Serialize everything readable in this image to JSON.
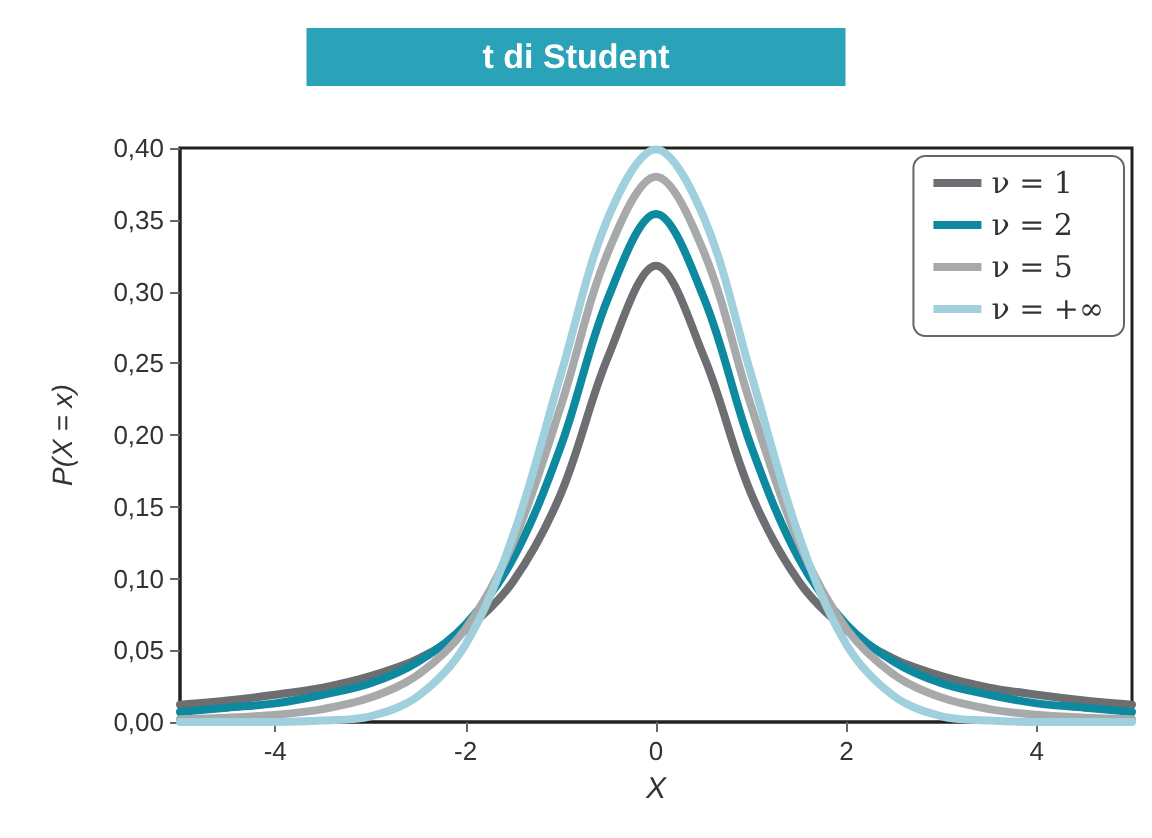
{
  "chart_data": {
    "type": "line",
    "title": "t di Student",
    "xlabel": "X",
    "ylabel": "P(X = x)",
    "x": [
      -5,
      -4.5,
      -4,
      -3.5,
      -3,
      -2.5,
      -2,
      -1.5,
      -1,
      -0.5,
      0,
      0.5,
      1,
      1.5,
      2,
      2.5,
      3,
      3.5,
      4,
      4.5,
      5
    ],
    "series": [
      {
        "name": "ν = 1",
        "color": "#6d6e71",
        "values": [
          0.012,
          0.015,
          0.019,
          0.024,
          0.032,
          0.044,
          0.064,
          0.098,
          0.159,
          0.255,
          0.318,
          0.255,
          0.159,
          0.098,
          0.064,
          0.044,
          0.032,
          0.024,
          0.019,
          0.015,
          0.012
        ]
      },
      {
        "name": "ν = 2",
        "color": "#0e8aa0",
        "values": [
          0.007,
          0.01,
          0.013,
          0.019,
          0.027,
          0.042,
          0.068,
          0.114,
          0.192,
          0.296,
          0.354,
          0.296,
          0.192,
          0.114,
          0.068,
          0.042,
          0.027,
          0.019,
          0.013,
          0.01,
          0.007
        ]
      },
      {
        "name": "ν = 5",
        "color": "#a8a9ab",
        "values": [
          0.002,
          0.003,
          0.005,
          0.009,
          0.017,
          0.033,
          0.065,
          0.125,
          0.22,
          0.328,
          0.38,
          0.328,
          0.22,
          0.125,
          0.065,
          0.033,
          0.017,
          0.009,
          0.005,
          0.003,
          0.002
        ]
      },
      {
        "name": "ν = +∞",
        "color": "#9fd0dc",
        "values": [
          0.0,
          0.0,
          0.0,
          0.001,
          0.004,
          0.018,
          0.054,
          0.13,
          0.242,
          0.352,
          0.399,
          0.352,
          0.242,
          0.13,
          0.054,
          0.018,
          0.004,
          0.001,
          0.0,
          0.0,
          0.0
        ]
      }
    ],
    "xlim": [
      -5,
      5
    ],
    "xticks": [
      -4,
      -2,
      0,
      2,
      4
    ],
    "ylim": [
      0,
      0.4
    ],
    "yticks": [
      {
        "value": 0,
        "label": "0,00"
      },
      {
        "value": 0.05,
        "label": "0,05"
      },
      {
        "value": 0.1,
        "label": "0,10"
      },
      {
        "value": 0.15,
        "label": "0,15"
      },
      {
        "value": 0.2,
        "label": "0,20"
      },
      {
        "value": 0.25,
        "label": "0,25"
      },
      {
        "value": 0.3,
        "label": "0,30"
      },
      {
        "value": 0.35,
        "label": "0,35"
      },
      {
        "value": 0.4,
        "label": "0,40"
      }
    ],
    "grid": false,
    "legend": "top right",
    "marker": "none",
    "line_style": "solid"
  }
}
